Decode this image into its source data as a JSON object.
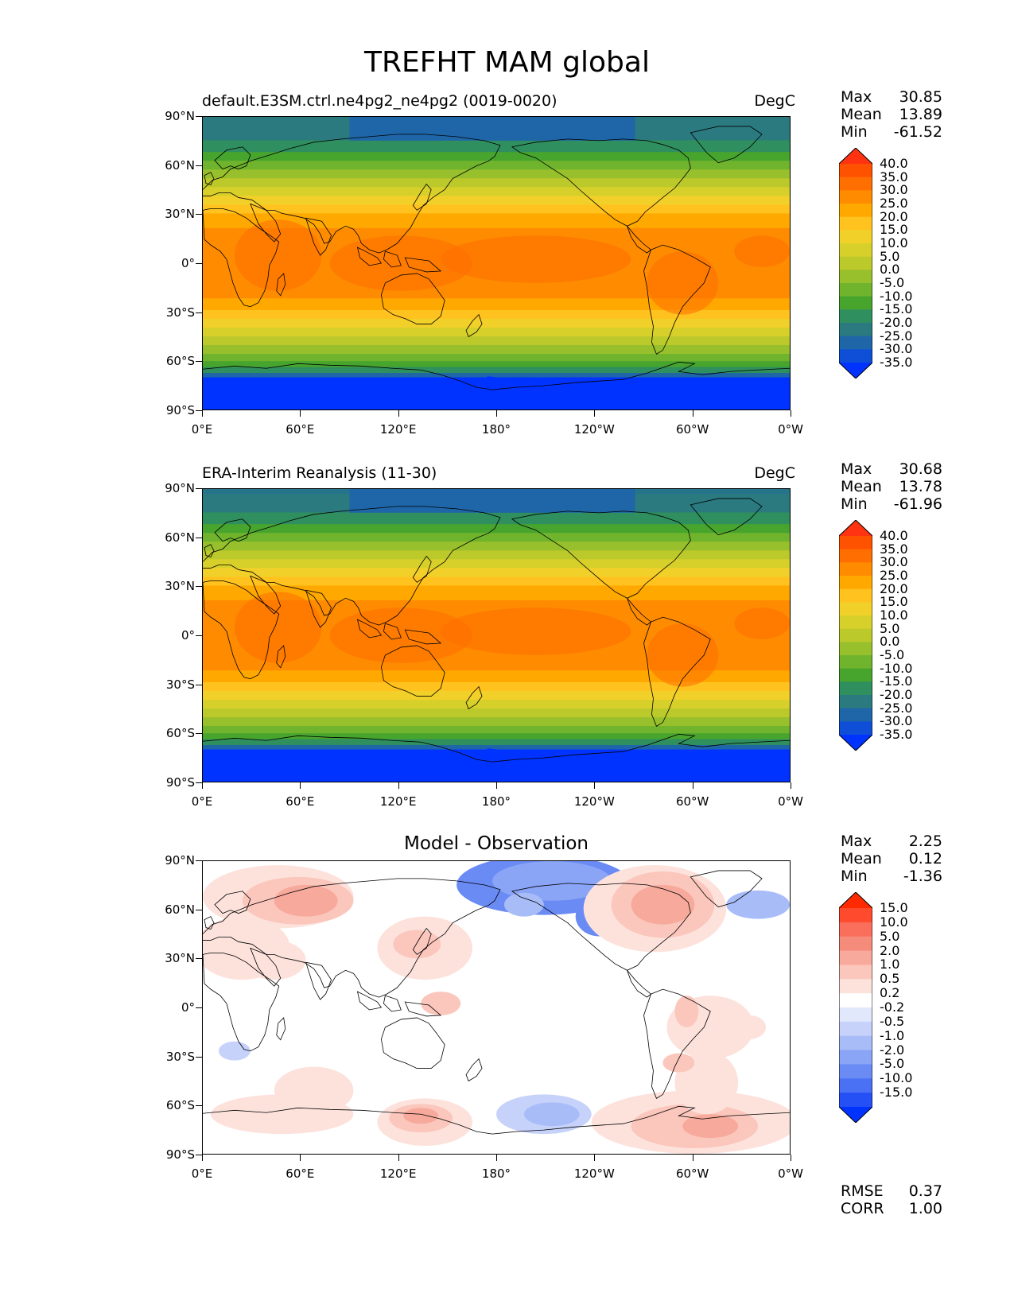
{
  "figure_title": "TREFHT MAM global",
  "x_ticks": [
    "0°E",
    "60°E",
    "120°E",
    "180°",
    "120°W",
    "60°W",
    "0°W"
  ],
  "y_ticks": [
    "90°N",
    "60°N",
    "30°N",
    "0°",
    "30°S",
    "60°S",
    "90°S"
  ],
  "panels": [
    {
      "title": "default.E3SM.ctrl.ne4pg2_ne4pg2 (0019-0020)",
      "units": "DegC",
      "stats": {
        "max_label": "Max",
        "max": "30.85",
        "mean_label": "Mean",
        "mean": "13.89",
        "min_label": "Min",
        "min": "-61.52"
      },
      "colorbar": {
        "labels": [
          "40.0",
          "35.0",
          "30.0",
          "25.0",
          "20.0",
          "15.0",
          "10.0",
          "5.0",
          "0.0",
          "-5.0",
          "-10.0",
          "-15.0",
          "-20.0",
          "-25.0",
          "-30.0",
          "-35.0"
        ],
        "colors": [
          "#ff3311",
          "#ff5200",
          "#ff6e00",
          "#ff8c00",
          "#ffa800",
          "#ffc21e",
          "#f2d02a",
          "#d8d02a",
          "#bcc92b",
          "#98c02c",
          "#6fb42c",
          "#47a52e",
          "#2f8f5e",
          "#2a7a80",
          "#1f66a8",
          "#0f4fd8",
          "#0033ff"
        ],
        "colormap": "temperature"
      }
    },
    {
      "title": "ERA-Interim Reanalysis (11-30)",
      "units": "DegC",
      "stats": {
        "max_label": "Max",
        "max": "30.68",
        "mean_label": "Mean",
        "mean": "13.78",
        "min_label": "Min",
        "min": "-61.96"
      },
      "colorbar": {
        "labels": [
          "40.0",
          "35.0",
          "30.0",
          "25.0",
          "20.0",
          "15.0",
          "10.0",
          "5.0",
          "0.0",
          "-5.0",
          "-10.0",
          "-15.0",
          "-20.0",
          "-25.0",
          "-30.0",
          "-35.0"
        ],
        "colors": [
          "#ff3311",
          "#ff5200",
          "#ff6e00",
          "#ff8c00",
          "#ffa800",
          "#ffc21e",
          "#f2d02a",
          "#d8d02a",
          "#bcc92b",
          "#98c02c",
          "#6fb42c",
          "#47a52e",
          "#2f8f5e",
          "#2a7a80",
          "#1f66a8",
          "#0f4fd8",
          "#0033ff"
        ],
        "colormap": "temperature"
      }
    },
    {
      "title": "Model - Observation",
      "stats": {
        "max_label": "Max",
        "max": "2.25",
        "mean_label": "Mean",
        "mean": "0.12",
        "min_label": "Min",
        "min": "-1.36"
      },
      "colorbar": {
        "labels": [
          "15.0",
          "10.0",
          "5.0",
          "2.0",
          "1.0",
          "0.5",
          "0.2",
          "-0.2",
          "-0.5",
          "-1.0",
          "-2.0",
          "-5.0",
          "-10.0",
          "-15.0"
        ],
        "colors": [
          "#ff2a00",
          "#ff4a2e",
          "#fa6e5c",
          "#f58b7a",
          "#f7a99b",
          "#fbc6bc",
          "#fde2dc",
          "#ffffff",
          "#e2e8fc",
          "#c6d2fa",
          "#a8bcf8",
          "#8aa4f6",
          "#6a8af4",
          "#4a70f4",
          "#2550f6",
          "#0033ff"
        ],
        "colormap": "diff"
      },
      "metrics": {
        "rmse_label": "RMSE",
        "rmse": "0.37",
        "corr_label": "CORR",
        "corr": "1.00"
      }
    }
  ]
}
